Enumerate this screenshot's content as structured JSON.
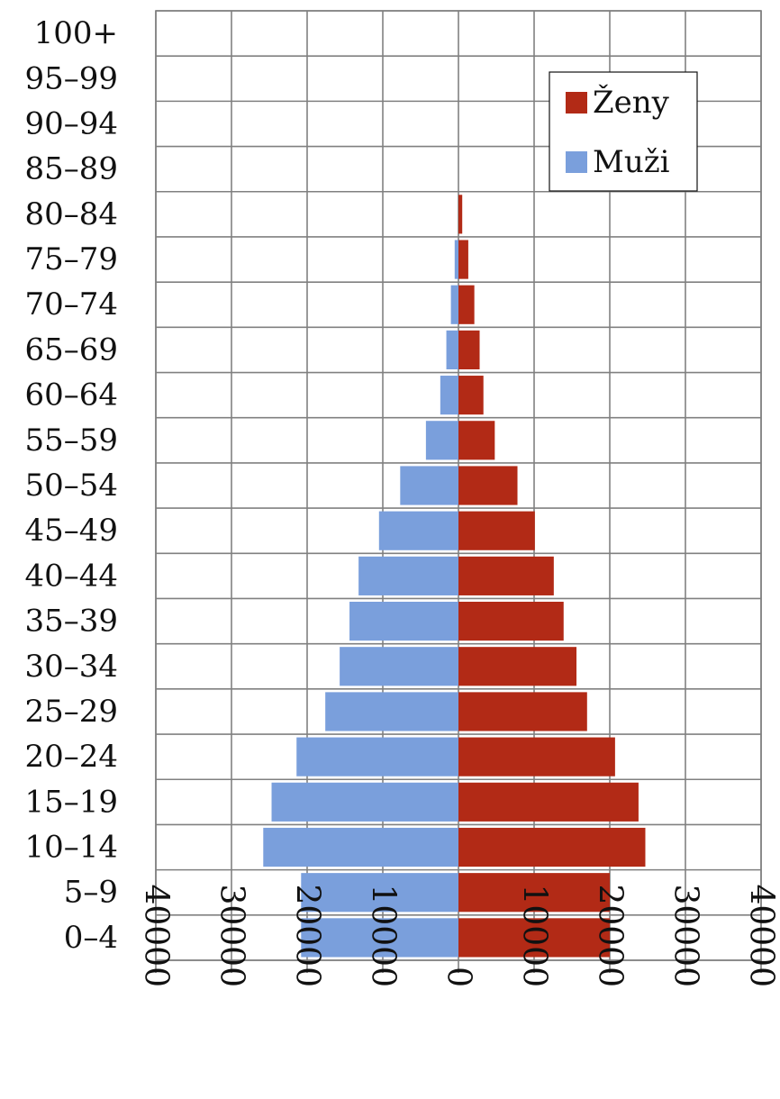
{
  "chart_data": {
    "type": "bar",
    "orientation": "horizontal",
    "layout": "population-pyramid",
    "categories": [
      "0–4",
      "5–9",
      "10–14",
      "15–19",
      "20–24",
      "25–29",
      "30–34",
      "35–39",
      "40–44",
      "45–49",
      "50–54",
      "55–59",
      "60–64",
      "65–69",
      "70–74",
      "75–79",
      "80–84",
      "85–89",
      "90–94",
      "95–99",
      "100+"
    ],
    "series": [
      {
        "name": "Ženy",
        "color": "#b22a16",
        "side": "right",
        "values": [
          20000,
          20000,
          24700,
          23800,
          20700,
          17000,
          15600,
          13900,
          12600,
          10100,
          7800,
          4800,
          3300,
          2800,
          2100,
          1300,
          500,
          0,
          0,
          0,
          0
        ]
      },
      {
        "name": "Muži",
        "color": "#7a9fdc",
        "side": "left",
        "values": [
          20800,
          20800,
          25800,
          24700,
          21400,
          17600,
          15700,
          14400,
          13200,
          10500,
          7700,
          4300,
          2400,
          1600,
          1000,
          500,
          0,
          0,
          0,
          0,
          0
        ]
      }
    ],
    "xlim": [
      -40000,
      40000
    ],
    "xticks": [
      "40000",
      "30000",
      "20000",
      "10000",
      "0",
      "10000",
      "20000",
      "30000",
      "40000"
    ],
    "title": "",
    "xlabel": "",
    "ylabel": "",
    "grid": true,
    "legend": {
      "position": "top-right",
      "order": [
        "Ženy",
        "Muži"
      ]
    }
  }
}
